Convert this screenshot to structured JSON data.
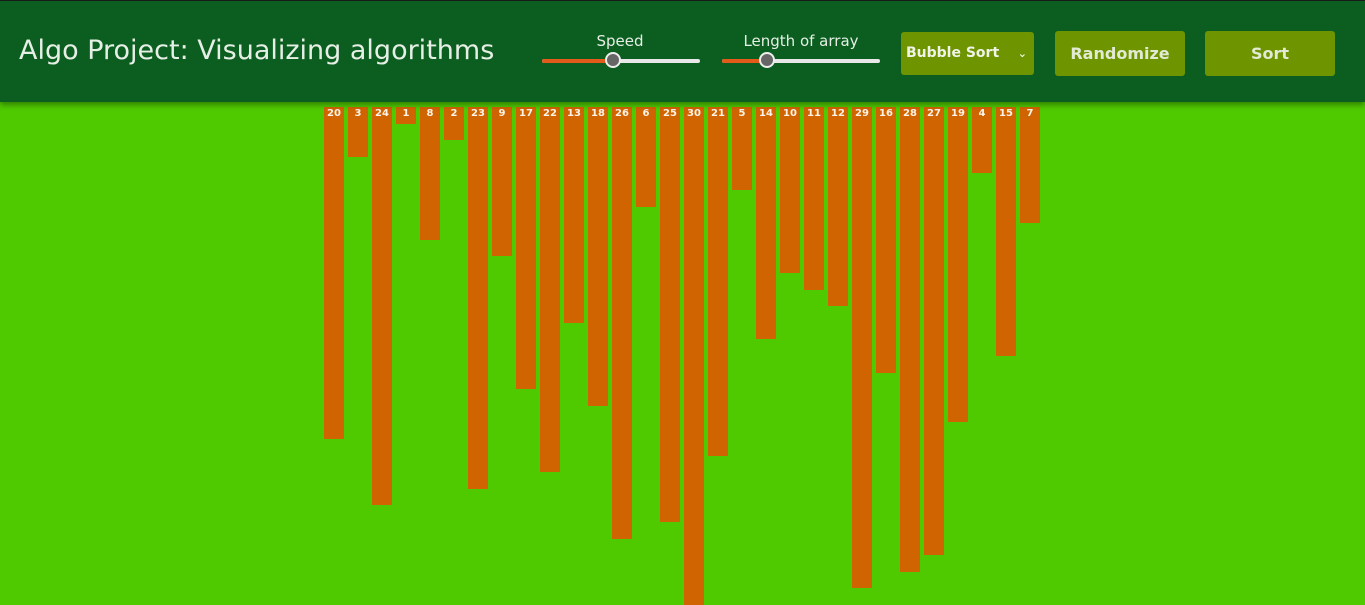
{
  "header": {
    "title": "Algo Project: Visualizing algorithms",
    "speed_label": "Speed",
    "length_label": "Length of array",
    "algorithm": "Bubble Sort",
    "randomize": "Randomize",
    "sort": "Sort"
  },
  "array": {
    "values": [
      20,
      3,
      24,
      1,
      8,
      2,
      23,
      9,
      17,
      22,
      13,
      18,
      26,
      6,
      25,
      30,
      21,
      5,
      14,
      10,
      11,
      12,
      29,
      16,
      28,
      27,
      19,
      4,
      15,
      7
    ]
  }
}
